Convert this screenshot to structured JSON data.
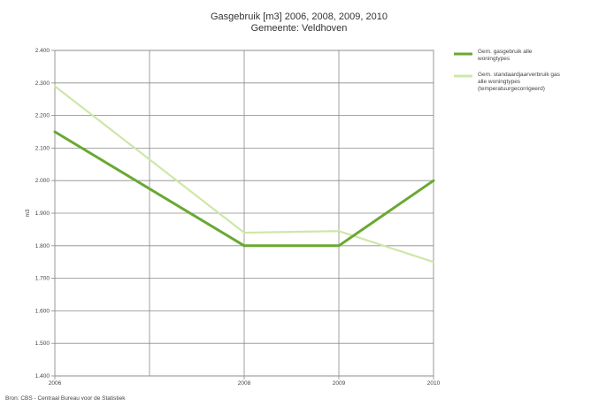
{
  "chart_data": {
    "type": "line",
    "title": "Gasgebruik [m3] 2006, 2008, 2009, 2010",
    "subtitle": "Gemeente: Veldhoven",
    "ylabel": "m3",
    "xlabel": "",
    "source": "Bron: CBS - Centraal Bureau voor de Statistiek",
    "x": [
      "2006",
      "2008",
      "2009",
      "2010"
    ],
    "y_ticks": [
      "2.400",
      "2.300",
      "2.200",
      "2.100",
      "2.000",
      "1.900",
      "1.800",
      "1.700",
      "1.600",
      "1.500",
      "1.400"
    ],
    "ylim": [
      1400,
      2400
    ],
    "grid": true,
    "legend_position": "right",
    "series": [
      {
        "name": "Gem. gasgebruik alle woningtypes",
        "color": "#6aa832",
        "values": [
          2150,
          1800,
          1800,
          2000
        ]
      },
      {
        "name": "Gem. standaardjaarverbruik gas alle woningtypes (temperatuurgecorrigeerd)",
        "color": "#cde7a8",
        "values": [
          2290,
          1840,
          1845,
          1750
        ]
      }
    ]
  }
}
